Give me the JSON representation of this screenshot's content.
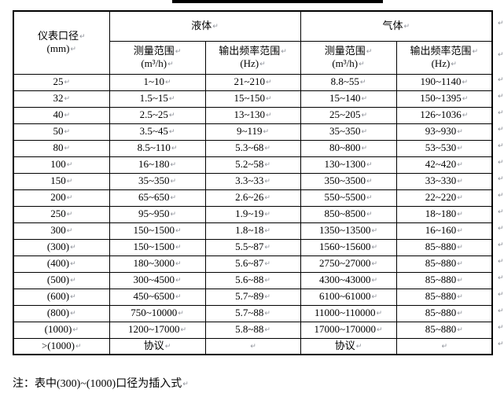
{
  "title_rule": {
    "present": true
  },
  "table": {
    "header": {
      "col_diameter": "仪表口径",
      "col_diameter_unit": "(mm)",
      "group_liquid": "液体",
      "group_gas": "气体",
      "sub_measure": "测量范围",
      "sub_measure_unit": "(m³/h)",
      "sub_freq": "输出频率范围",
      "sub_freq_unit": "(Hz)"
    },
    "rows": [
      [
        "25",
        "1~10",
        "21~210",
        "8.8~55",
        "190~1140"
      ],
      [
        "32",
        "1.5~15",
        "15~150",
        "15~140",
        "150~1395"
      ],
      [
        "40",
        "2.5~25",
        "13~130",
        "25~205",
        "126~1036"
      ],
      [
        "50",
        "3.5~45",
        "9~119",
        "35~350",
        "93~930"
      ],
      [
        "80",
        "8.5~110",
        "5.3~68",
        "80~800",
        "53~530"
      ],
      [
        "100",
        "16~180",
        "5.2~58",
        "130~1300",
        "42~420"
      ],
      [
        "150",
        "35~350",
        "3.3~33",
        "350~3500",
        "33~330"
      ],
      [
        "200",
        "65~650",
        "2.6~26",
        "550~5500",
        "22~220"
      ],
      [
        "250",
        "95~950",
        "1.9~19",
        "850~8500",
        "18~180"
      ],
      [
        "300",
        "150~1500",
        "1.8~18",
        "1350~13500",
        "16~160"
      ],
      [
        "(300)",
        "150~1500",
        "5.5~87",
        "1560~15600",
        "85~880"
      ],
      [
        "(400)",
        "180~3000",
        "5.6~87",
        "2750~27000",
        "85~880"
      ],
      [
        "(500)",
        "300~4500",
        "5.6~88",
        "4300~43000",
        "85~880"
      ],
      [
        "(600)",
        "450~6500",
        "5.7~89",
        "6100~61000",
        "85~880"
      ],
      [
        "(800)",
        "750~10000",
        "5.7~88",
        "11000~110000",
        "85~880"
      ],
      [
        "(1000)",
        "1200~17000",
        "5.8~88",
        "17000~170000",
        "85~880"
      ],
      [
        ">(1000)",
        "协议",
        "",
        "协议",
        ""
      ]
    ]
  },
  "note": "注：表中(300)~(1000)口径为插入式",
  "marks": {
    "paragraph": "↵"
  },
  "colors": {
    "border": "#000000",
    "text": "#000000",
    "mark": "#8f939b",
    "rule_bar": "#000000"
  }
}
